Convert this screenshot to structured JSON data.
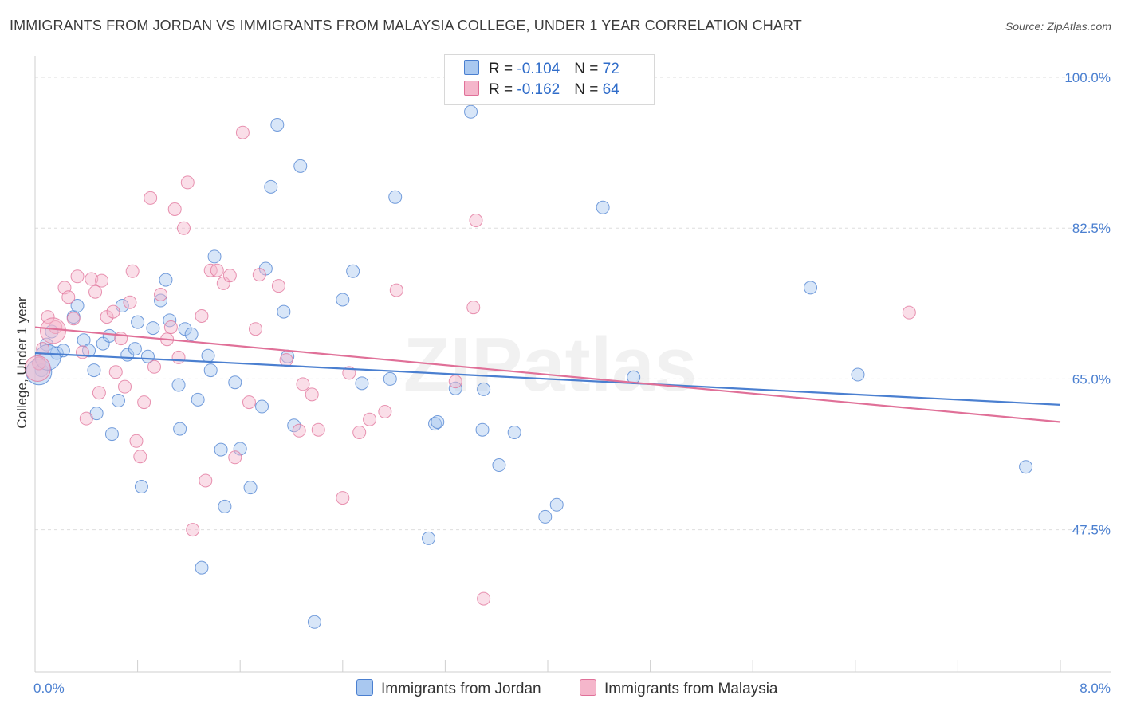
{
  "title": "IMMIGRANTS FROM JORDAN VS IMMIGRANTS FROM MALAYSIA COLLEGE, UNDER 1 YEAR CORRELATION CHART",
  "source": "Source: ZipAtlas.com",
  "watermark": "ZIPatlas",
  "legend_top": {
    "rows": [
      {
        "r_label": "R = ",
        "r_value": "-0.104",
        "n_label": "N = ",
        "n_value": "72"
      },
      {
        "r_label": "R = ",
        "r_value": "-0.162",
        "n_label": "N = ",
        "n_value": "64"
      }
    ]
  },
  "legend_bottom": {
    "jordan": "Immigrants from Jordan",
    "malaysia": "Immigrants from Malaysia"
  },
  "chart_data": {
    "type": "scatter",
    "title": "IMMIGRANTS FROM JORDAN VS IMMIGRANTS FROM MALAYSIA COLLEGE, UNDER 1 YEAR CORRELATION CHART",
    "xlabel": "",
    "ylabel": "College, Under 1 year",
    "xlim": [
      0,
      8
    ],
    "ylim": [
      31,
      102.5
    ],
    "x_tick_labels": [
      {
        "value": 0,
        "label": "0.0%"
      },
      {
        "value": 8,
        "label": "8.0%"
      }
    ],
    "y_tick_labels": [
      {
        "value": 100,
        "label": "100.0%"
      },
      {
        "value": 82.5,
        "label": "82.5%"
      },
      {
        "value": 65,
        "label": "65.0%"
      },
      {
        "value": 47.5,
        "label": "47.5%"
      }
    ],
    "grid": "horizontal dashed",
    "colors": {
      "jordan": "#4a7fd0",
      "malaysia": "#e07098",
      "jordan_fill": "#a9c8f0",
      "malaysia_fill": "#f5b6cb"
    },
    "series": [
      {
        "name": "Immigrants from Jordan",
        "color": "#4a7fd0",
        "trend": {
          "x": [
            0,
            8
          ],
          "y": [
            68.0,
            62.0
          ]
        },
        "points": [
          [
            0.03,
            66.8
          ],
          [
            0.05,
            66.0
          ],
          [
            0.09,
            69.0
          ],
          [
            0.13,
            70.5
          ],
          [
            0.17,
            68.0
          ],
          [
            0.22,
            68.3
          ],
          [
            0.3,
            72.2
          ],
          [
            0.33,
            73.5
          ],
          [
            0.38,
            69.5
          ],
          [
            0.42,
            68.3
          ],
          [
            0.46,
            66.0
          ],
          [
            0.48,
            61.0
          ],
          [
            0.53,
            69.1
          ],
          [
            0.58,
            70.0
          ],
          [
            0.6,
            58.6
          ],
          [
            0.65,
            62.5
          ],
          [
            0.68,
            73.5
          ],
          [
            0.72,
            67.8
          ],
          [
            0.78,
            68.5
          ],
          [
            0.8,
            71.6
          ],
          [
            0.83,
            52.5
          ],
          [
            0.88,
            67.6
          ],
          [
            0.92,
            70.9
          ],
          [
            0.98,
            74.1
          ],
          [
            1.02,
            76.5
          ],
          [
            1.05,
            71.8
          ],
          [
            1.12,
            64.3
          ],
          [
            1.13,
            59.2
          ],
          [
            1.17,
            70.8
          ],
          [
            1.22,
            70.2
          ],
          [
            1.27,
            62.6
          ],
          [
            1.3,
            43.1
          ],
          [
            1.35,
            67.7
          ],
          [
            1.37,
            66.0
          ],
          [
            1.4,
            79.2
          ],
          [
            1.45,
            56.8
          ],
          [
            1.48,
            50.2
          ],
          [
            1.56,
            64.6
          ],
          [
            1.6,
            56.9
          ],
          [
            1.68,
            52.4
          ],
          [
            1.77,
            61.8
          ],
          [
            1.8,
            77.8
          ],
          [
            1.84,
            87.3
          ],
          [
            1.89,
            94.5
          ],
          [
            1.94,
            72.8
          ],
          [
            1.97,
            67.6
          ],
          [
            2.02,
            59.6
          ],
          [
            2.07,
            89.7
          ],
          [
            2.18,
            36.8
          ],
          [
            2.4,
            74.2
          ],
          [
            2.48,
            77.5
          ],
          [
            2.55,
            64.5
          ],
          [
            2.77,
            65.0
          ],
          [
            2.81,
            86.1
          ],
          [
            3.07,
            46.5
          ],
          [
            3.12,
            59.8
          ],
          [
            3.14,
            60.0
          ],
          [
            3.28,
            63.9
          ],
          [
            3.4,
            96.0
          ],
          [
            3.49,
            59.1
          ],
          [
            3.5,
            63.8
          ],
          [
            3.62,
            55.0
          ],
          [
            3.74,
            58.8
          ],
          [
            3.98,
            49.0
          ],
          [
            4.07,
            50.4
          ],
          [
            4.43,
            84.9
          ],
          [
            4.67,
            65.2
          ],
          [
            6.05,
            75.6
          ],
          [
            6.42,
            65.5
          ],
          [
            7.73,
            54.8
          ],
          [
            0.03,
            65.8
          ],
          [
            0.1,
            67.5
          ]
        ]
      },
      {
        "name": "Immigrants from Malaysia",
        "color": "#e07098",
        "trend": {
          "x": [
            0,
            8
          ],
          "y": [
            71.0,
            60.0
          ]
        },
        "points": [
          [
            0.03,
            66.8
          ],
          [
            0.06,
            68.5
          ],
          [
            0.1,
            72.2
          ],
          [
            0.16,
            71.0
          ],
          [
            0.23,
            75.6
          ],
          [
            0.26,
            74.5
          ],
          [
            0.3,
            72.0
          ],
          [
            0.33,
            76.9
          ],
          [
            0.37,
            68.1
          ],
          [
            0.4,
            60.4
          ],
          [
            0.44,
            76.6
          ],
          [
            0.47,
            75.1
          ],
          [
            0.5,
            63.4
          ],
          [
            0.52,
            76.4
          ],
          [
            0.56,
            72.2
          ],
          [
            0.61,
            72.8
          ],
          [
            0.63,
            65.8
          ],
          [
            0.67,
            69.7
          ],
          [
            0.7,
            64.1
          ],
          [
            0.74,
            73.9
          ],
          [
            0.76,
            77.5
          ],
          [
            0.79,
            57.8
          ],
          [
            0.82,
            56.0
          ],
          [
            0.85,
            62.3
          ],
          [
            0.9,
            86.0
          ],
          [
            0.93,
            66.4
          ],
          [
            0.98,
            74.8
          ],
          [
            1.03,
            69.6
          ],
          [
            1.06,
            71.0
          ],
          [
            1.09,
            84.7
          ],
          [
            1.12,
            67.5
          ],
          [
            1.16,
            82.5
          ],
          [
            1.19,
            87.8
          ],
          [
            1.23,
            47.5
          ],
          [
            1.3,
            72.3
          ],
          [
            1.33,
            53.2
          ],
          [
            1.37,
            77.6
          ],
          [
            1.42,
            77.6
          ],
          [
            1.47,
            76.1
          ],
          [
            1.52,
            77.0
          ],
          [
            1.56,
            55.9
          ],
          [
            1.62,
            93.6
          ],
          [
            1.67,
            62.3
          ],
          [
            1.72,
            70.8
          ],
          [
            1.75,
            77.1
          ],
          [
            1.9,
            75.8
          ],
          [
            1.96,
            67.2
          ],
          [
            2.06,
            59.0
          ],
          [
            2.09,
            64.4
          ],
          [
            2.16,
            63.2
          ],
          [
            2.21,
            59.1
          ],
          [
            2.4,
            51.2
          ],
          [
            2.45,
            65.7
          ],
          [
            2.53,
            58.8
          ],
          [
            2.61,
            60.3
          ],
          [
            2.73,
            61.2
          ],
          [
            2.82,
            75.3
          ],
          [
            3.28,
            64.7
          ],
          [
            3.42,
            73.3
          ],
          [
            3.44,
            83.4
          ],
          [
            3.5,
            39.5
          ],
          [
            6.82,
            72.7
          ],
          [
            0.02,
            66.2
          ],
          [
            0.14,
            70.6
          ]
        ]
      }
    ]
  }
}
